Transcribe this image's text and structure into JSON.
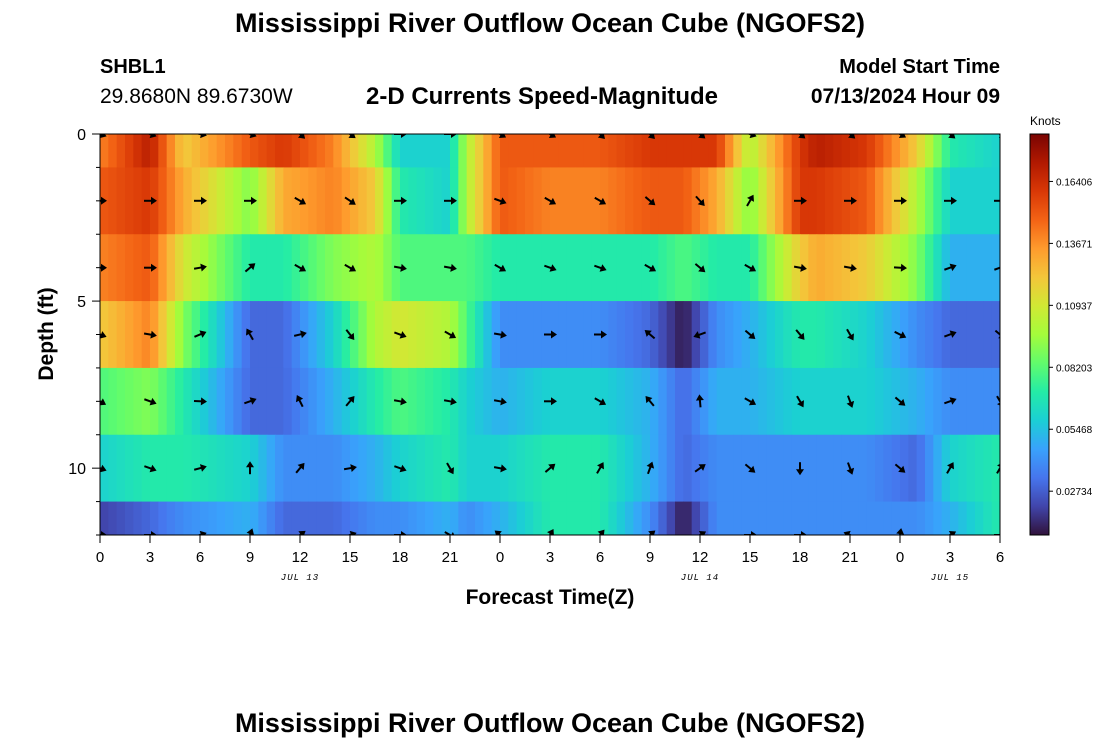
{
  "header": {
    "title": "Mississippi River Outflow Ocean Cube (NGOFS2)",
    "station": "SHBL1",
    "coords": "29.8680N  89.6730W",
    "subtitle": "2-D Currents Speed-Magnitude",
    "model_start_label": "Model Start Time",
    "model_start_value": "07/13/2024 Hour 09"
  },
  "footer": {
    "title": "Mississippi River Outflow Ocean Cube (NGOFS2)"
  },
  "colors": {
    "colormap": [
      "#30123b",
      "#4145ab",
      "#4675ed",
      "#39a2fc",
      "#1bcfd4",
      "#24eca6",
      "#61fc6c",
      "#a4fc3b",
      "#d1e834",
      "#f3c63a",
      "#fe9b2d",
      "#f36315",
      "#d93806",
      "#b11901",
      "#7a0402"
    ]
  },
  "chart_data": {
    "type": "heatmap",
    "xlabel": "Forecast Time(Z)",
    "ylabel": "Depth (ft)",
    "x_ticks": [
      "0",
      "3",
      "6",
      "9",
      "12",
      "15",
      "18",
      "21",
      "0",
      "3",
      "6",
      "9",
      "12",
      "15",
      "18",
      "21",
      "0",
      "3",
      "6"
    ],
    "date_labels": [
      {
        "label": "JUL 13",
        "hour": 12
      },
      {
        "label": "JUL 14",
        "hour": 36
      },
      {
        "label": "JUL 15",
        "hour": 51
      }
    ],
    "x_range_hours": [
      0,
      54
    ],
    "y_ticks": [
      "0",
      "5",
      "10"
    ],
    "ylim": [
      0,
      12
    ],
    "colorbar": {
      "label": "Knots",
      "ticks": [
        "0.16406",
        "0.13671",
        "0.10937",
        "0.08203",
        "0.05468",
        "0.02734"
      ],
      "tick_values": [
        0.16406,
        0.13671,
        0.10937,
        0.08203,
        0.05468,
        0.02734
      ],
      "range": [
        0.008,
        0.185
      ]
    },
    "grid": false,
    "depth_levels_ft": [
      0,
      2,
      4,
      6,
      8,
      10,
      12
    ],
    "key_points_hours": [
      0,
      3,
      5,
      9,
      11,
      14,
      16.5,
      18,
      21,
      22,
      24,
      27,
      30,
      33,
      35,
      37,
      39,
      42,
      43,
      46,
      49,
      51,
      54
    ],
    "speeds_knots": [
      [
        0.14,
        0.17,
        0.12,
        0.15,
        0.16,
        0.14,
        0.1,
        0.06,
        0.06,
        0.1,
        0.15,
        0.15,
        0.15,
        0.16,
        0.16,
        0.16,
        0.1,
        0.16,
        0.17,
        0.16,
        0.12,
        0.07,
        0.06
      ],
      [
        0.15,
        0.16,
        0.13,
        0.09,
        0.13,
        0.14,
        0.12,
        0.07,
        0.06,
        0.1,
        0.15,
        0.14,
        0.14,
        0.15,
        0.15,
        0.13,
        0.09,
        0.16,
        0.16,
        0.15,
        0.1,
        0.06,
        0.06
      ],
      [
        0.14,
        0.15,
        0.11,
        0.07,
        0.07,
        0.09,
        0.1,
        0.08,
        0.08,
        0.08,
        0.07,
        0.07,
        0.07,
        0.07,
        0.08,
        0.07,
        0.07,
        0.12,
        0.13,
        0.12,
        0.09,
        0.05,
        0.05
      ],
      [
        0.12,
        0.14,
        0.09,
        0.03,
        0.03,
        0.06,
        0.1,
        0.11,
        0.1,
        0.08,
        0.04,
        0.04,
        0.04,
        0.03,
        0.01,
        0.04,
        0.05,
        0.07,
        0.07,
        0.06,
        0.04,
        0.03,
        0.03
      ],
      [
        0.08,
        0.09,
        0.07,
        0.03,
        0.03,
        0.05,
        0.07,
        0.08,
        0.07,
        0.06,
        0.05,
        0.06,
        0.06,
        0.05,
        0.03,
        0.05,
        0.05,
        0.06,
        0.06,
        0.06,
        0.05,
        0.04,
        0.04
      ],
      [
        0.06,
        0.07,
        0.07,
        0.06,
        0.04,
        0.04,
        0.05,
        0.06,
        0.07,
        0.06,
        0.06,
        0.07,
        0.07,
        0.05,
        0.03,
        0.04,
        0.04,
        0.04,
        0.04,
        0.04,
        0.03,
        0.06,
        0.07
      ],
      [
        0.02,
        0.03,
        0.04,
        0.05,
        0.03,
        0.03,
        0.04,
        0.04,
        0.05,
        0.04,
        0.05,
        0.07,
        0.07,
        0.04,
        0.01,
        0.04,
        0.04,
        0.04,
        0.04,
        0.04,
        0.04,
        0.05,
        0.07
      ]
    ],
    "arrow_directions_deg": [
      [
        20,
        20,
        10,
        20,
        45,
        40,
        30,
        0,
        0,
        10,
        30,
        30,
        45,
        45,
        40,
        40,
        20,
        40,
        45,
        40,
        25,
        40,
        30
      ],
      [
        0,
        0,
        0,
        0,
        30,
        30,
        40,
        0,
        0,
        10,
        20,
        30,
        30,
        40,
        45,
        50,
        -60,
        0,
        0,
        0,
        0,
        0,
        0
      ],
      [
        0,
        0,
        0,
        -40,
        30,
        30,
        30,
        10,
        10,
        20,
        30,
        20,
        20,
        30,
        40,
        40,
        30,
        10,
        10,
        10,
        0,
        -20,
        -20
      ],
      [
        20,
        10,
        10,
        -120,
        -50,
        60,
        40,
        20,
        30,
        50,
        10,
        0,
        0,
        -140,
        170,
        150,
        40,
        50,
        60,
        60,
        10,
        -20,
        40
      ],
      [
        30,
        20,
        10,
        -20,
        -120,
        -110,
        40,
        10,
        10,
        30,
        10,
        0,
        30,
        -130,
        -90,
        -100,
        30,
        60,
        90,
        60,
        30,
        -20,
        60
      ],
      [
        20,
        20,
        10,
        -90,
        -60,
        -30,
        20,
        20,
        60,
        30,
        10,
        -40,
        -60,
        -70,
        -90,
        20,
        40,
        90,
        90,
        60,
        30,
        -60,
        -60
      ],
      [
        0,
        0,
        0,
        -70,
        -40,
        -30,
        0,
        0,
        30,
        -150,
        -140,
        -60,
        -50,
        -40,
        -60,
        0,
        0,
        0,
        -150,
        -160,
        -40,
        -30,
        0
      ]
    ],
    "arrow_columns_hours": [
      0,
      3,
      6,
      9,
      12,
      15,
      18,
      21,
      24,
      27,
      30,
      33,
      36,
      39,
      42,
      45,
      48,
      51,
      54
    ]
  }
}
